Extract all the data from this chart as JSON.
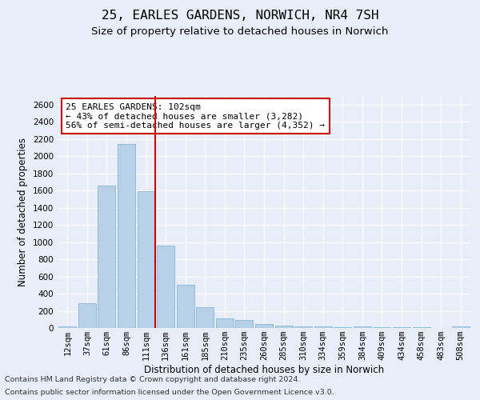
{
  "title": "25, EARLES GARDENS, NORWICH, NR4 7SH",
  "subtitle": "Size of property relative to detached houses in Norwich",
  "xlabel": "Distribution of detached houses by size in Norwich",
  "ylabel": "Number of detached properties",
  "categories": [
    "12sqm",
    "37sqm",
    "61sqm",
    "86sqm",
    "111sqm",
    "136sqm",
    "161sqm",
    "185sqm",
    "210sqm",
    "235sqm",
    "260sqm",
    "285sqm",
    "310sqm",
    "334sqm",
    "359sqm",
    "384sqm",
    "409sqm",
    "434sqm",
    "458sqm",
    "483sqm",
    "508sqm"
  ],
  "values": [
    15,
    290,
    1660,
    2140,
    1590,
    960,
    500,
    240,
    115,
    95,
    45,
    30,
    20,
    15,
    10,
    20,
    8,
    5,
    8,
    3,
    15
  ],
  "bar_color": "#b8d0e8",
  "bar_edge_color": "#7aaed4",
  "vline_x_index": 4,
  "vline_color": "#cc0000",
  "annotation_text": "25 EARLES GARDENS: 102sqm\n← 43% of detached houses are smaller (3,282)\n56% of semi-detached houses are larger (4,352) →",
  "annotation_box_color": "#ffffff",
  "annotation_box_edge_color": "#cc0000",
  "ylim": [
    0,
    2700
  ],
  "yticks": [
    0,
    200,
    400,
    600,
    800,
    1000,
    1200,
    1400,
    1600,
    1800,
    2000,
    2200,
    2400,
    2600
  ],
  "footer_line1": "Contains HM Land Registry data © Crown copyright and database right 2024.",
  "footer_line2": "Contains public sector information licensed under the Open Government Licence v3.0.",
  "bg_color": "#e8eef8",
  "grid_color": "#ffffff",
  "title_fontsize": 11.5,
  "subtitle_fontsize": 9.5,
  "axis_label_fontsize": 8.5,
  "tick_fontsize": 7.5,
  "annotation_fontsize": 8,
  "footer_fontsize": 6.8
}
